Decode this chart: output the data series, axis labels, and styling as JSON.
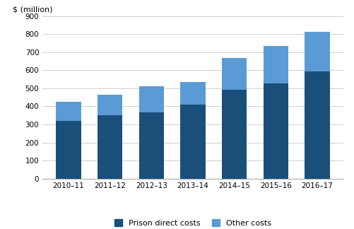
{
  "categories": [
    "2010–11",
    "2011–12",
    "2012–13",
    "2013–14",
    "2014―15",
    "2015–16",
    "2016–17"
  ],
  "prison_direct": [
    320,
    350,
    365,
    408,
    490,
    527,
    593
  ],
  "other_costs": [
    105,
    115,
    148,
    128,
    178,
    207,
    220
  ],
  "color_direct": "#1a4f7a",
  "color_other": "#5b9bd5",
  "ylabel": "$ (million)",
  "ylim": [
    0,
    900
  ],
  "yticks": [
    0,
    100,
    200,
    300,
    400,
    500,
    600,
    700,
    800,
    900
  ],
  "legend_direct": "Prison direct costs",
  "legend_other": "Other costs",
  "grid_color": "#d0d0d0",
  "bar_width": 0.6
}
